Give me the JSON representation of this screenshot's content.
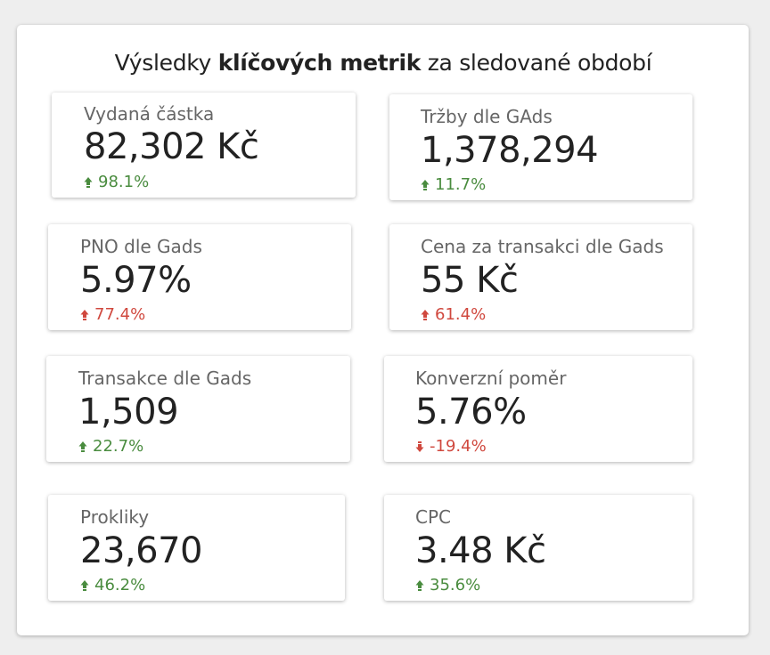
{
  "header": {
    "title_prefix": "Výsledky ",
    "title_bold": "klíčových metrik",
    "title_suffix": " za sledované období"
  },
  "colors": {
    "positive": "#4a8c3f",
    "negative": "#d0483e"
  },
  "metrics": [
    {
      "label": "Vydaná částka",
      "value": "82,302 Kč",
      "delta": "98.1%",
      "direction": "up",
      "tone": "positive"
    },
    {
      "label": "Tržby dle GAds",
      "value": "1,378,294",
      "delta": "11.7%",
      "direction": "up",
      "tone": "positive"
    },
    {
      "label": "PNO dle Gads",
      "value": "5.97%",
      "delta": "77.4%",
      "direction": "up",
      "tone": "negative"
    },
    {
      "label": "Cena za transakci dle Gads",
      "value": "55 Kč",
      "delta": "61.4%",
      "direction": "up",
      "tone": "negative"
    },
    {
      "label": "Transakce dle Gads",
      "value": "1,509",
      "delta": "22.7%",
      "direction": "up",
      "tone": "positive"
    },
    {
      "label": "Konverzní poměr",
      "value": "5.76%",
      "delta": "-19.4%",
      "direction": "down",
      "tone": "negative"
    },
    {
      "label": "Prokliky",
      "value": "23,670",
      "delta": "46.2%",
      "direction": "up",
      "tone": "positive"
    },
    {
      "label": "CPC",
      "value": "3.48 Kč",
      "delta": "35.6%",
      "direction": "up",
      "tone": "positive"
    }
  ]
}
